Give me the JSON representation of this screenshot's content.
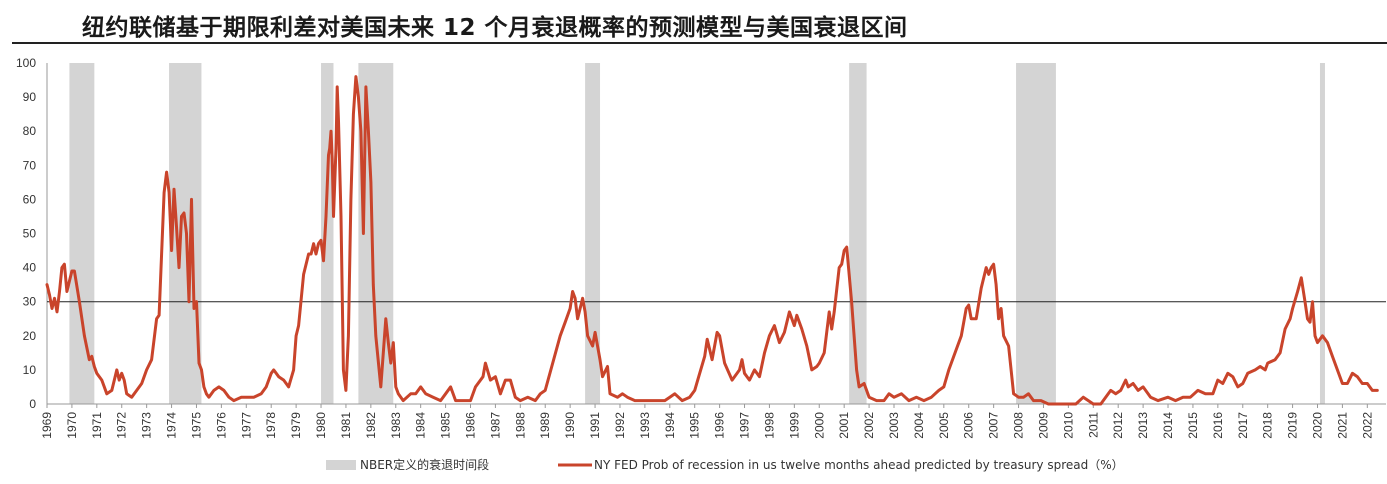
{
  "chart_data": {
    "type": "line",
    "title": "纽约联储基于期限利差对美国未来 12 个月衰退概率的预测模型与美国衰退区间",
    "ylim": [
      0,
      100
    ],
    "yticks": [
      0,
      10,
      20,
      30,
      40,
      50,
      60,
      70,
      80,
      90,
      100
    ],
    "xlim": [
      1969,
      2022.75
    ],
    "xticks": [
      "1969",
      "1970",
      "1971",
      "1972",
      "1973",
      "1974",
      "1975",
      "1976",
      "1977",
      "1978",
      "1979",
      "1980",
      "1981",
      "1982",
      "1983",
      "1984",
      "1985",
      "1986",
      "1987",
      "1988",
      "1989",
      "1990",
      "1991",
      "1992",
      "1993",
      "1994",
      "1995",
      "1996",
      "1997",
      "1998",
      "1999",
      "2000",
      "2001",
      "2002",
      "2003",
      "2004",
      "2005",
      "2006",
      "2007",
      "2008",
      "2009",
      "2010",
      "2011",
      "2012",
      "2013",
      "2014",
      "2015",
      "2016",
      "2017",
      "2018",
      "2019",
      "2020",
      "2021",
      "2022"
    ],
    "reference_line": 30,
    "grid": false,
    "legend_position": "bottom",
    "recessions": {
      "name": "NBER定义的衰退时间段",
      "color": "#d4d4d4",
      "periods": [
        [
          1969.9,
          1970.9
        ],
        [
          1973.9,
          1975.2
        ],
        [
          1980.0,
          1980.5
        ],
        [
          1981.5,
          1982.9
        ],
        [
          1990.6,
          1991.2
        ],
        [
          2001.2,
          2001.9
        ],
        [
          2007.9,
          2009.5
        ],
        [
          2020.1,
          2020.3
        ]
      ]
    },
    "series": [
      {
        "name": "NY FED Prob of recession in us twelve months ahead predicted by treasury spread（%）",
        "color": "#c9442b",
        "points": [
          [
            1969.0,
            35
          ],
          [
            1969.1,
            32
          ],
          [
            1969.2,
            28
          ],
          [
            1969.3,
            31
          ],
          [
            1969.4,
            27
          ],
          [
            1969.5,
            33
          ],
          [
            1969.6,
            40
          ],
          [
            1969.7,
            41
          ],
          [
            1969.8,
            33
          ],
          [
            1969.9,
            36
          ],
          [
            1970.0,
            39
          ],
          [
            1970.1,
            39
          ],
          [
            1970.3,
            30
          ],
          [
            1970.5,
            20
          ],
          [
            1970.7,
            13
          ],
          [
            1970.8,
            14
          ],
          [
            1970.9,
            11
          ],
          [
            1971.0,
            9
          ],
          [
            1971.2,
            7
          ],
          [
            1971.4,
            3
          ],
          [
            1971.6,
            4
          ],
          [
            1971.8,
            10
          ],
          [
            1971.9,
            7
          ],
          [
            1972.0,
            9
          ],
          [
            1972.1,
            7
          ],
          [
            1972.2,
            3
          ],
          [
            1972.4,
            2
          ],
          [
            1972.6,
            4
          ],
          [
            1972.8,
            6
          ],
          [
            1973.0,
            10
          ],
          [
            1973.2,
            13
          ],
          [
            1973.4,
            25
          ],
          [
            1973.5,
            26
          ],
          [
            1973.7,
            62
          ],
          [
            1973.8,
            68
          ],
          [
            1973.9,
            62
          ],
          [
            1974.0,
            45
          ],
          [
            1974.1,
            63
          ],
          [
            1974.2,
            52
          ],
          [
            1974.3,
            40
          ],
          [
            1974.4,
            55
          ],
          [
            1974.5,
            56
          ],
          [
            1974.6,
            50
          ],
          [
            1974.7,
            30
          ],
          [
            1974.8,
            60
          ],
          [
            1974.9,
            28
          ],
          [
            1975.0,
            30
          ],
          [
            1975.1,
            12
          ],
          [
            1975.2,
            10
          ],
          [
            1975.3,
            5
          ],
          [
            1975.4,
            3
          ],
          [
            1975.5,
            2
          ],
          [
            1975.7,
            4
          ],
          [
            1975.9,
            5
          ],
          [
            1976.1,
            4
          ],
          [
            1976.3,
            2
          ],
          [
            1976.5,
            1
          ],
          [
            1976.8,
            2
          ],
          [
            1977.0,
            2
          ],
          [
            1977.3,
            2
          ],
          [
            1977.6,
            3
          ],
          [
            1977.8,
            5
          ],
          [
            1978.0,
            9
          ],
          [
            1978.1,
            10
          ],
          [
            1978.3,
            8
          ],
          [
            1978.5,
            7
          ],
          [
            1978.7,
            5
          ],
          [
            1978.9,
            10
          ],
          [
            1979.0,
            20
          ],
          [
            1979.1,
            23
          ],
          [
            1979.3,
            38
          ],
          [
            1979.5,
            44
          ],
          [
            1979.6,
            44
          ],
          [
            1979.7,
            47
          ],
          [
            1979.8,
            44
          ],
          [
            1979.9,
            47
          ],
          [
            1980.0,
            48
          ],
          [
            1980.1,
            42
          ],
          [
            1980.2,
            55
          ],
          [
            1980.3,
            73
          ],
          [
            1980.35,
            75
          ],
          [
            1980.4,
            80
          ],
          [
            1980.45,
            72
          ],
          [
            1980.5,
            55
          ],
          [
            1980.6,
            75
          ],
          [
            1980.65,
            93
          ],
          [
            1980.7,
            83
          ],
          [
            1980.8,
            55
          ],
          [
            1980.9,
            10
          ],
          [
            1981.0,
            4
          ],
          [
            1981.1,
            20
          ],
          [
            1981.2,
            60
          ],
          [
            1981.3,
            85
          ],
          [
            1981.4,
            96
          ],
          [
            1981.5,
            90
          ],
          [
            1981.6,
            80
          ],
          [
            1981.7,
            50
          ],
          [
            1981.8,
            93
          ],
          [
            1981.9,
            80
          ],
          [
            1982.0,
            65
          ],
          [
            1982.1,
            35
          ],
          [
            1982.2,
            20
          ],
          [
            1982.4,
            5
          ],
          [
            1982.5,
            15
          ],
          [
            1982.6,
            25
          ],
          [
            1982.7,
            18
          ],
          [
            1982.8,
            12
          ],
          [
            1982.9,
            18
          ],
          [
            1983.0,
            5
          ],
          [
            1983.1,
            3
          ],
          [
            1983.3,
            1
          ],
          [
            1983.6,
            3
          ],
          [
            1983.8,
            3
          ],
          [
            1984.0,
            5
          ],
          [
            1984.2,
            3
          ],
          [
            1984.5,
            2
          ],
          [
            1984.8,
            1
          ],
          [
            1985.0,
            3
          ],
          [
            1985.2,
            5
          ],
          [
            1985.4,
            1
          ],
          [
            1985.7,
            1
          ],
          [
            1986.0,
            1
          ],
          [
            1986.2,
            5
          ],
          [
            1986.5,
            8
          ],
          [
            1986.6,
            12
          ],
          [
            1986.8,
            7
          ],
          [
            1987.0,
            8
          ],
          [
            1987.2,
            3
          ],
          [
            1987.4,
            7
          ],
          [
            1987.6,
            7
          ],
          [
            1987.8,
            2
          ],
          [
            1988.0,
            1
          ],
          [
            1988.3,
            2
          ],
          [
            1988.6,
            1
          ],
          [
            1988.8,
            3
          ],
          [
            1989.0,
            4
          ],
          [
            1989.3,
            12
          ],
          [
            1989.6,
            20
          ],
          [
            1989.8,
            24
          ],
          [
            1990.0,
            28
          ],
          [
            1990.1,
            33
          ],
          [
            1990.2,
            31
          ],
          [
            1990.3,
            25
          ],
          [
            1990.5,
            31
          ],
          [
            1990.6,
            27
          ],
          [
            1990.7,
            20
          ],
          [
            1990.9,
            17
          ],
          [
            1991.0,
            21
          ],
          [
            1991.2,
            13
          ],
          [
            1991.3,
            8
          ],
          [
            1991.5,
            11
          ],
          [
            1991.6,
            3
          ],
          [
            1991.9,
            2
          ],
          [
            1992.1,
            3
          ],
          [
            1992.3,
            2
          ],
          [
            1992.6,
            1
          ],
          [
            1993.0,
            1
          ],
          [
            1993.5,
            1
          ],
          [
            1993.8,
            1
          ],
          [
            1994.0,
            2
          ],
          [
            1994.2,
            3
          ],
          [
            1994.5,
            1
          ],
          [
            1994.8,
            2
          ],
          [
            1995.0,
            4
          ],
          [
            1995.2,
            9
          ],
          [
            1995.4,
            14
          ],
          [
            1995.5,
            19
          ],
          [
            1995.7,
            13
          ],
          [
            1995.9,
            21
          ],
          [
            1996.0,
            20
          ],
          [
            1996.2,
            12
          ],
          [
            1996.5,
            7
          ],
          [
            1996.8,
            10
          ],
          [
            1996.9,
            13
          ],
          [
            1997.0,
            9
          ],
          [
            1997.2,
            7
          ],
          [
            1997.4,
            10
          ],
          [
            1997.6,
            8
          ],
          [
            1997.8,
            15
          ],
          [
            1998.0,
            20
          ],
          [
            1998.2,
            23
          ],
          [
            1998.4,
            18
          ],
          [
            1998.6,
            21
          ],
          [
            1998.8,
            27
          ],
          [
            1999.0,
            23
          ],
          [
            1999.1,
            26
          ],
          [
            1999.3,
            22
          ],
          [
            1999.5,
            17
          ],
          [
            1999.7,
            10
          ],
          [
            1999.9,
            11
          ],
          [
            2000.0,
            12
          ],
          [
            2000.2,
            15
          ],
          [
            2000.4,
            27
          ],
          [
            2000.5,
            22
          ],
          [
            2000.6,
            27
          ],
          [
            2000.8,
            40
          ],
          [
            2000.9,
            41
          ],
          [
            2001.0,
            45
          ],
          [
            2001.1,
            46
          ],
          [
            2001.3,
            30
          ],
          [
            2001.5,
            10
          ],
          [
            2001.6,
            5
          ],
          [
            2001.8,
            6
          ],
          [
            2002.0,
            2
          ],
          [
            2002.3,
            1
          ],
          [
            2002.6,
            1
          ],
          [
            2002.8,
            3
          ],
          [
            2003.0,
            2
          ],
          [
            2003.3,
            3
          ],
          [
            2003.6,
            1
          ],
          [
            2003.9,
            2
          ],
          [
            2004.2,
            1
          ],
          [
            2004.5,
            2
          ],
          [
            2004.8,
            4
          ],
          [
            2005.0,
            5
          ],
          [
            2005.2,
            10
          ],
          [
            2005.5,
            16
          ],
          [
            2005.7,
            20
          ],
          [
            2005.9,
            28
          ],
          [
            2006.0,
            29
          ],
          [
            2006.1,
            25
          ],
          [
            2006.3,
            25
          ],
          [
            2006.5,
            34
          ],
          [
            2006.7,
            40
          ],
          [
            2006.8,
            38
          ],
          [
            2006.9,
            40
          ],
          [
            2007.0,
            41
          ],
          [
            2007.1,
            35
          ],
          [
            2007.2,
            25
          ],
          [
            2007.3,
            28
          ],
          [
            2007.4,
            20
          ],
          [
            2007.6,
            17
          ],
          [
            2007.8,
            3
          ],
          [
            2008.0,
            2
          ],
          [
            2008.2,
            2
          ],
          [
            2008.4,
            3
          ],
          [
            2008.6,
            1
          ],
          [
            2008.9,
            1
          ],
          [
            2009.2,
            0
          ],
          [
            2009.6,
            0
          ],
          [
            2010.0,
            0
          ],
          [
            2010.3,
            0
          ],
          [
            2010.6,
            2
          ],
          [
            2010.8,
            1
          ],
          [
            2011.0,
            0
          ],
          [
            2011.3,
            0
          ],
          [
            2011.5,
            2
          ],
          [
            2011.7,
            4
          ],
          [
            2011.9,
            3
          ],
          [
            2012.1,
            4
          ],
          [
            2012.3,
            7
          ],
          [
            2012.4,
            5
          ],
          [
            2012.6,
            6
          ],
          [
            2012.8,
            4
          ],
          [
            2013.0,
            5
          ],
          [
            2013.3,
            2
          ],
          [
            2013.6,
            1
          ],
          [
            2014.0,
            2
          ],
          [
            2014.3,
            1
          ],
          [
            2014.6,
            2
          ],
          [
            2014.9,
            2
          ],
          [
            2015.2,
            4
          ],
          [
            2015.5,
            3
          ],
          [
            2015.8,
            3
          ],
          [
            2016.0,
            7
          ],
          [
            2016.2,
            6
          ],
          [
            2016.4,
            9
          ],
          [
            2016.6,
            8
          ],
          [
            2016.8,
            5
          ],
          [
            2017.0,
            6
          ],
          [
            2017.2,
            9
          ],
          [
            2017.5,
            10
          ],
          [
            2017.7,
            11
          ],
          [
            2017.9,
            10
          ],
          [
            2018.0,
            12
          ],
          [
            2018.3,
            13
          ],
          [
            2018.5,
            15
          ],
          [
            2018.7,
            22
          ],
          [
            2018.9,
            25
          ],
          [
            2019.0,
            28
          ],
          [
            2019.2,
            33
          ],
          [
            2019.35,
            37
          ],
          [
            2019.5,
            30
          ],
          [
            2019.6,
            25
          ],
          [
            2019.7,
            24
          ],
          [
            2019.8,
            30
          ],
          [
            2019.9,
            20
          ],
          [
            2020.0,
            18
          ],
          [
            2020.2,
            20
          ],
          [
            2020.4,
            18
          ],
          [
            2020.6,
            14
          ],
          [
            2020.8,
            10
          ],
          [
            2021.0,
            6
          ],
          [
            2021.2,
            6
          ],
          [
            2021.4,
            9
          ],
          [
            2021.6,
            8
          ],
          [
            2021.8,
            6
          ],
          [
            2022.0,
            6
          ],
          [
            2022.2,
            4
          ],
          [
            2022.4,
            4
          ]
        ]
      }
    ]
  }
}
